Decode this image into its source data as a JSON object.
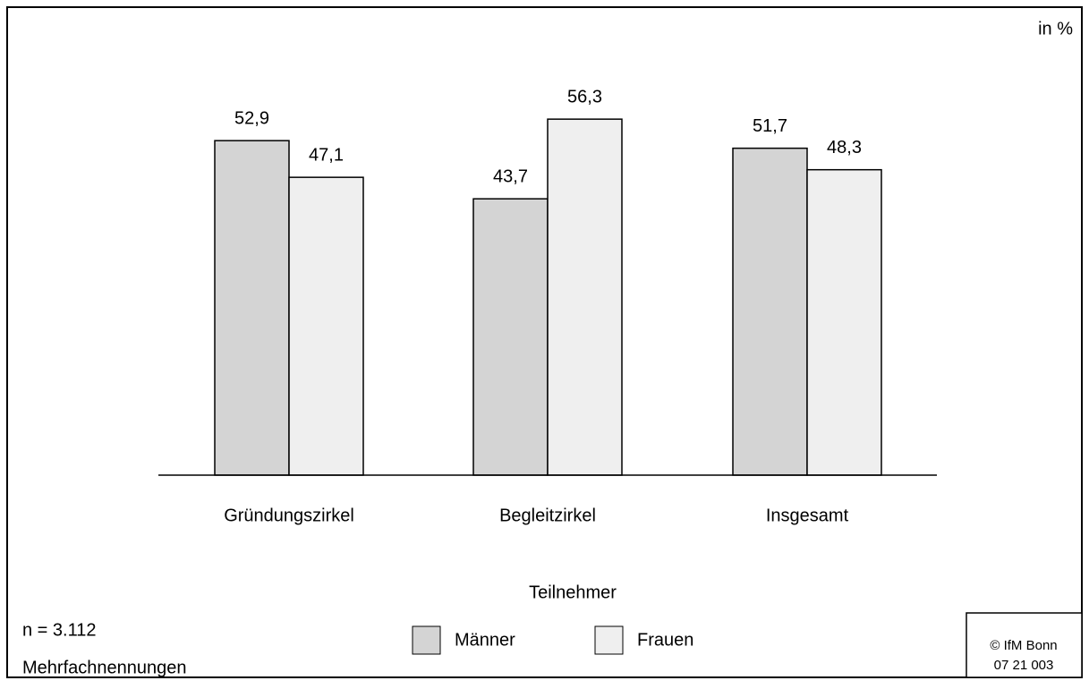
{
  "chart_data": {
    "type": "bar",
    "unit_note": "in %",
    "categories": [
      "Gründungszirkel",
      "Begleitzirkel",
      "Insgesamt"
    ],
    "x_label": "Teilnehmer",
    "series": [
      {
        "name": "Männer",
        "color": "#d4d4d4",
        "values": [
          52.9,
          43.7,
          51.7
        ],
        "value_labels": [
          "52,9",
          "43,7",
          "51,7"
        ]
      },
      {
        "name": "Frauen",
        "color": "#efefef",
        "values": [
          47.1,
          56.3,
          48.3
        ],
        "value_labels": [
          "47,1",
          "56,3",
          "48,3"
        ]
      }
    ],
    "ylim": [
      0,
      75
    ],
    "notes": [
      "n = 3.112",
      "Mehrfachnennungen"
    ],
    "source": [
      "© IfM Bonn",
      "07  21  003"
    ]
  }
}
